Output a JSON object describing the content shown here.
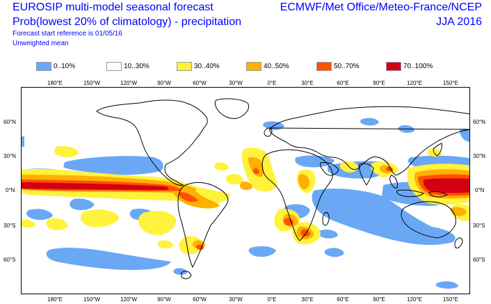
{
  "header": {
    "title_line_1": "EUROSIP multi-model seasonal forecast",
    "title_line_2": "Prob(lowest 20% of climatology) - precipitation",
    "title_line_3": "Forecast start reference is 01/05/16",
    "title_line_4": "Unweighted mean",
    "source": "ECMWF/Met Office/Meteo-France/NCEP",
    "season": "JJA 2016"
  },
  "legend": [
    {
      "label": "0..10%",
      "color": "#6aa8f6"
    },
    {
      "label": "10..30%",
      "color": "#ffffff"
    },
    {
      "label": "30..40%",
      "color": "#fff23c"
    },
    {
      "label": "40..50%",
      "color": "#ffb000"
    },
    {
      "label": "50..70%",
      "color": "#ff5000"
    },
    {
      "label": "70..100%",
      "color": "#d10012"
    }
  ],
  "map": {
    "lon_labels_top": [
      "180°E",
      "150°W",
      "120°W",
      "90°W",
      "60°W",
      "30°W",
      "0°E",
      "30°E",
      "60°E",
      "90°E",
      "120°E",
      "150°E"
    ],
    "lon_labels_bottom": [
      "180°E",
      "150°W",
      "120°W",
      "90°W",
      "60°W",
      "30°W",
      "0°E",
      "30°E",
      "60°E",
      "90°E",
      "120°E",
      "150°E"
    ],
    "lat_labels_left": [
      "60°N",
      "30°N",
      "0°N",
      "30°S",
      "60°S"
    ],
    "lat_labels_right": [
      "60°N",
      "30°N",
      "0°N",
      "30°S",
      "60°S"
    ]
  }
}
